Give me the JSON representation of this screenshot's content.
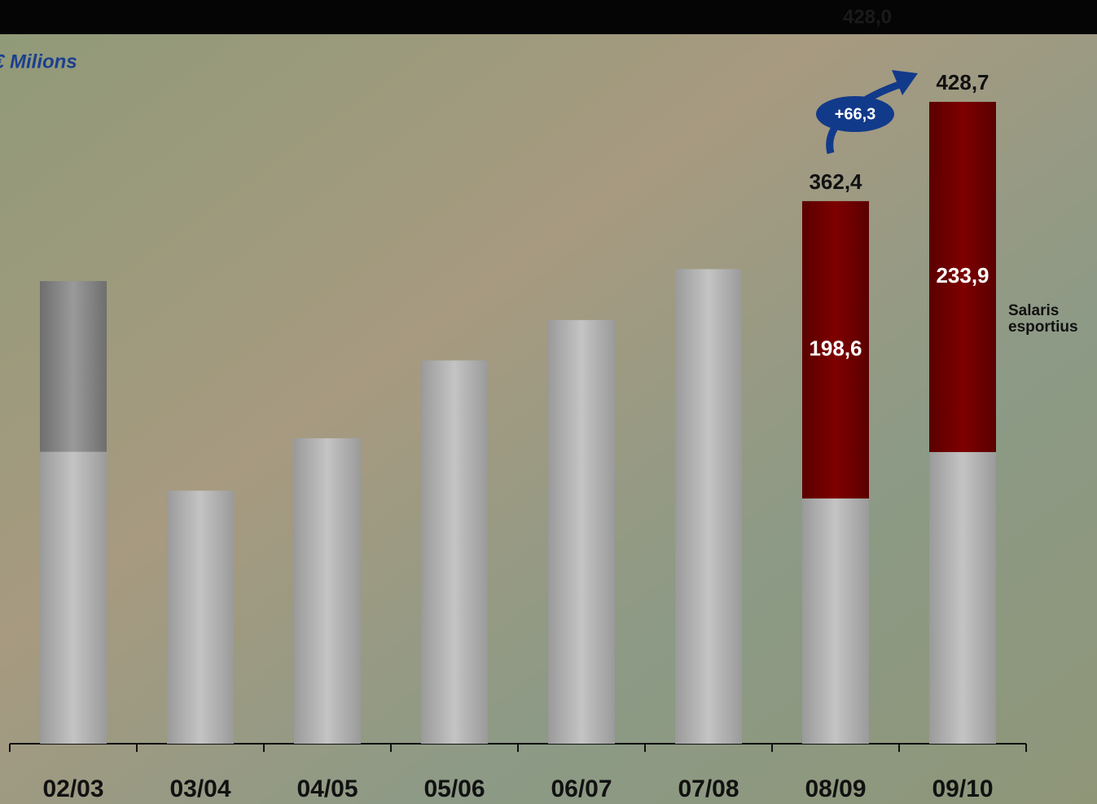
{
  "chart_data": {
    "type": "bar",
    "stacked": true,
    "unit_label": "€ Milions",
    "categories": [
      "02/03",
      "03/04",
      "04/05",
      "05/06",
      "06/07",
      "07/08",
      "08/09",
      "09/10"
    ],
    "series": [
      {
        "color": "#bdbdbd",
        "values": [
          195,
          169,
          204,
          256,
          283,
          317,
          163.8,
          194.8
        ]
      },
      {
        "color": "#8e8e8e",
        "values": [
          114,
          null,
          null,
          null,
          null,
          null,
          null,
          null
        ]
      },
      {
        "name": "Salaris esportius",
        "color": "#7a0000",
        "values": [
          null,
          null,
          null,
          null,
          null,
          null,
          198.6,
          233.9
        ],
        "value_labels": [
          null,
          null,
          null,
          null,
          null,
          null,
          "198,6",
          "233,9"
        ]
      }
    ],
    "totals": [
      null,
      null,
      null,
      null,
      null,
      null,
      362.4,
      428.7
    ],
    "total_labels": [
      null,
      null,
      null,
      null,
      null,
      null,
      "362,4",
      "428,7"
    ],
    "growth_label": "+66,3",
    "ghost_label": "428,0"
  }
}
